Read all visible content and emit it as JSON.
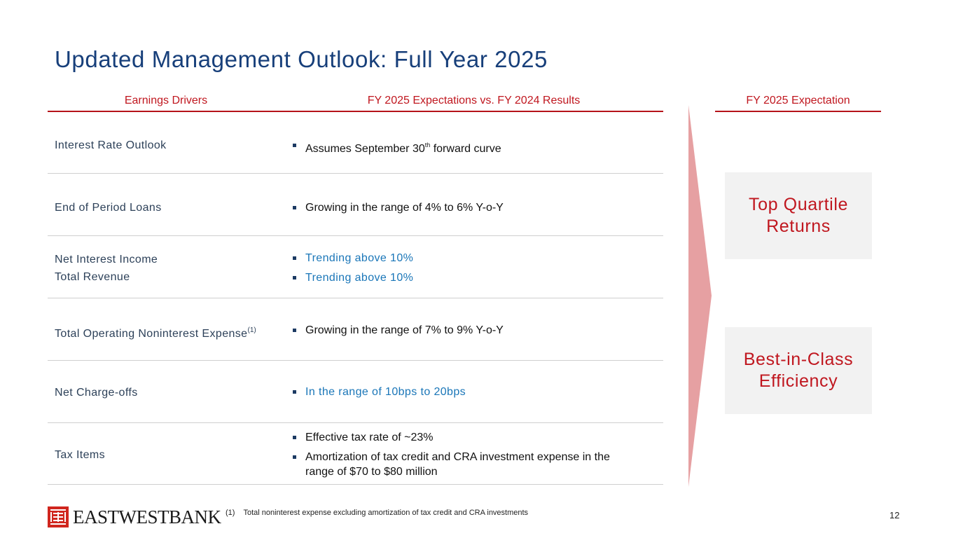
{
  "title": "Updated Management Outlook: Full Year 2025",
  "headers": {
    "drivers": "Earnings Drivers",
    "expectations": "FY 2025 Expectations vs. FY 2024 Results",
    "expectation": "FY 2025 Expectation"
  },
  "rows": [
    {
      "driver": "Interest Rate Outlook",
      "bullet_1": {
        "pre": "Assumes September 30",
        "sup": "th",
        "post": " forward curve"
      }
    },
    {
      "driver": "End of Period Loans",
      "bullet_1": "Growing in the range of 4% to 6% Y-o-Y"
    },
    {
      "driver_1": "Net Interest Income",
      "driver_2": "Total Revenue",
      "bullet_1": "Trending above 10%",
      "bullet_2": "Trending above 10%"
    },
    {
      "driver": "Total Operating Noninterest Expense",
      "driver_sup": "(1)",
      "bullet_1": "Growing in the range of 7% to 9% Y-o-Y"
    },
    {
      "driver": "Net Charge-offs",
      "bullet_1": "In the range of 10bps to 20bps"
    },
    {
      "driver": "Tax Items",
      "bullet_1": "Effective tax rate of ~23%",
      "bullet_2": "Amortization of tax credit and CRA investment expense in the range of $70 to $80 million"
    }
  ],
  "boxes": [
    {
      "line_1": "Top Quartile",
      "line_2": "Returns"
    },
    {
      "line_1": "Best-in-Class",
      "line_2": "Efficiency"
    }
  ],
  "colors": {
    "title": "#173f7a",
    "accent_red": "#c0171f",
    "highlight_blue": "#1a76b8",
    "arrow": "#e6a0a2"
  },
  "footer": {
    "logo_text": "EASTWESTBANK",
    "footnote_num": "(1)",
    "footnote_text": "Total noninterest expense excluding amortization of tax credit and CRA investments",
    "page_number": "12"
  }
}
